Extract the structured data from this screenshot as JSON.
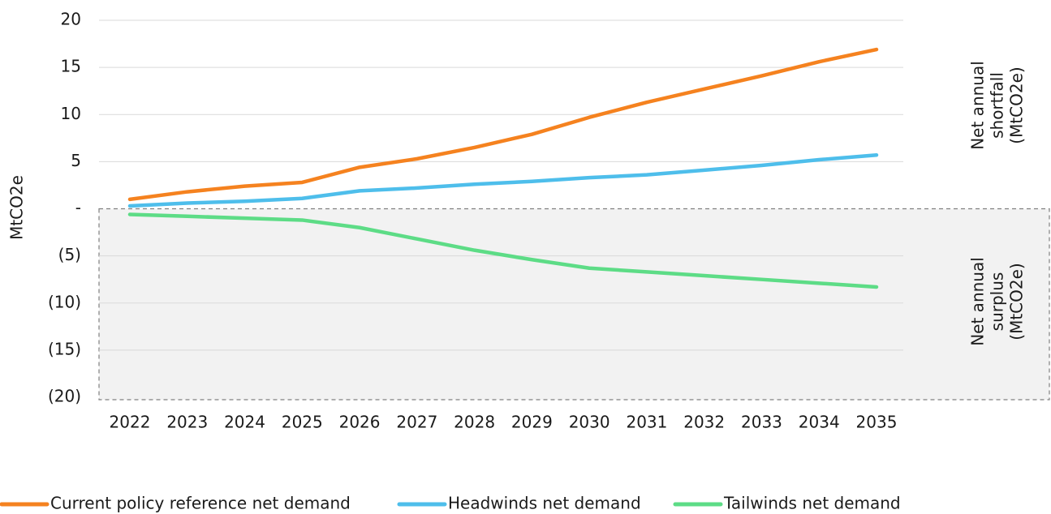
{
  "chart_data": {
    "type": "line",
    "y_label": "MtCO2e",
    "categories": [
      "2022",
      "2023",
      "2024",
      "2025",
      "2026",
      "2027",
      "2028",
      "2029",
      "2030",
      "2031",
      "2032",
      "2033",
      "2034",
      "2035"
    ],
    "series": [
      {
        "name": "Current policy reference net demand",
        "color": "#f5821f",
        "values": [
          1.0,
          1.8,
          2.4,
          2.8,
          4.4,
          5.3,
          6.5,
          7.9,
          9.7,
          11.3,
          12.7,
          14.1,
          15.6,
          16.9
        ]
      },
      {
        "name": "Headwinds net demand",
        "color": "#4ebeeb",
        "values": [
          0.3,
          0.6,
          0.8,
          1.1,
          1.9,
          2.2,
          2.6,
          2.9,
          3.3,
          3.6,
          4.1,
          4.6,
          5.2,
          5.7
        ]
      },
      {
        "name": "Tailwinds net demand",
        "color": "#5ddc86",
        "values": [
          -0.6,
          -0.8,
          -1.0,
          -1.2,
          -2.0,
          -3.2,
          -4.4,
          -5.4,
          -6.3,
          -6.7,
          -7.1,
          -7.5,
          -7.9,
          -8.3
        ]
      }
    ],
    "ylim": [
      -20,
      20
    ],
    "yticks": [
      {
        "value": -20,
        "label": "(20)"
      },
      {
        "value": -15,
        "label": "(15)"
      },
      {
        "value": -10,
        "label": "(10)"
      },
      {
        "value": -5,
        "label": "(5)"
      },
      {
        "value": 0,
        "label": "-"
      },
      5,
      10,
      15,
      20
    ],
    "grid": true,
    "legend": "bottom",
    "annotations": [
      {
        "lines": [
          "Net annual",
          "shortfall",
          "(MtCO2e)"
        ]
      },
      {
        "lines": [
          "Net annual",
          "surplus",
          "(MtCO2e)"
        ]
      }
    ],
    "shaded_range": [
      -20,
      0
    ]
  }
}
